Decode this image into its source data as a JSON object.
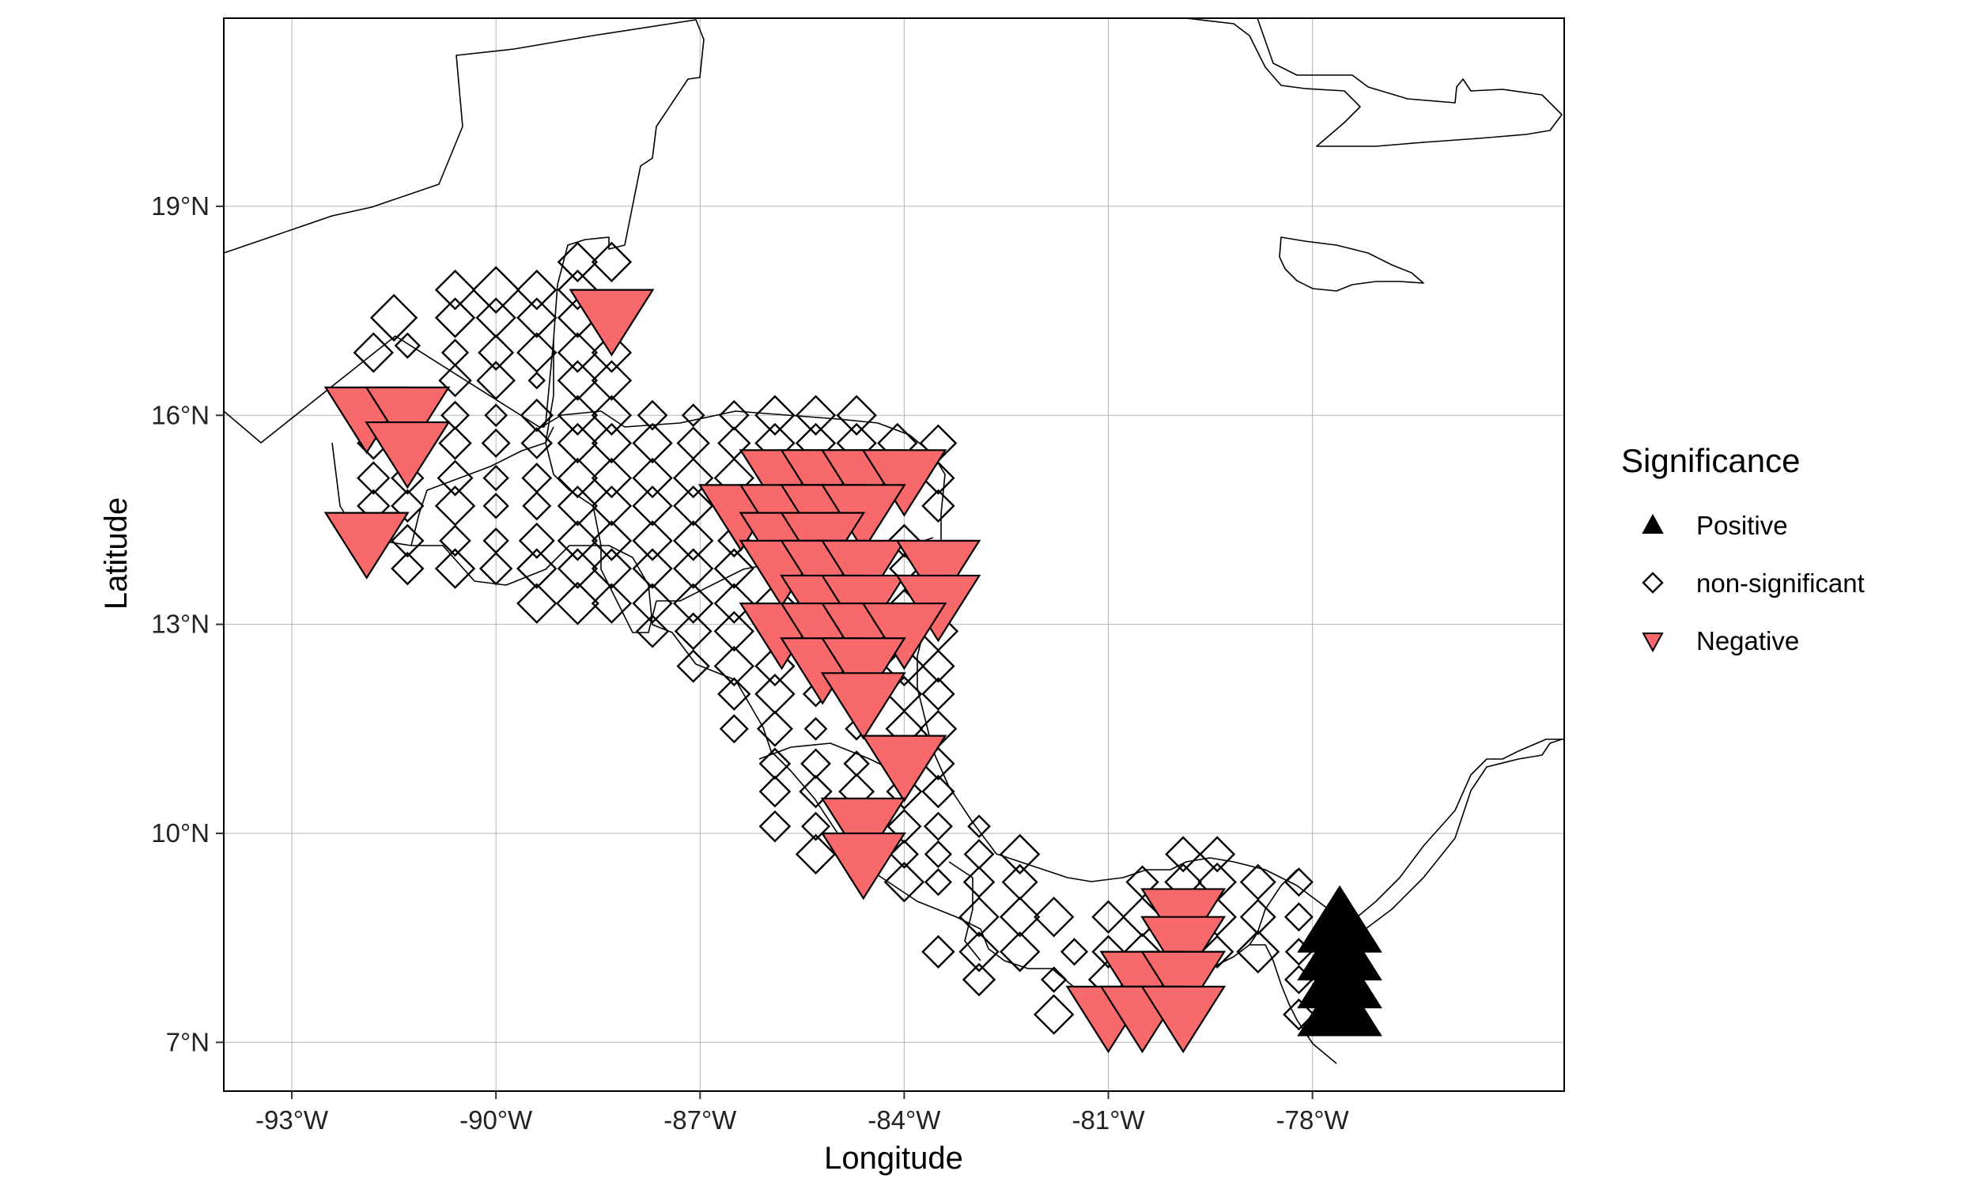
{
  "chart_data": {
    "type": "scatter",
    "xlabel": "Longitude",
    "ylabel": "Latitude",
    "xlim": [
      -94,
      -74.3
    ],
    "ylim": [
      6.3,
      21.7
    ],
    "x_ticks": [
      {
        "value": -93,
        "label": "-93°W"
      },
      {
        "value": -90,
        "label": "-90°W"
      },
      {
        "value": -87,
        "label": "-87°W"
      },
      {
        "value": -84,
        "label": "-84°W"
      },
      {
        "value": -81,
        "label": "-81°W"
      },
      {
        "value": -78,
        "label": "-78°W"
      }
    ],
    "y_ticks": [
      {
        "value": 7,
        "label": "7°N"
      },
      {
        "value": 10,
        "label": "10°N"
      },
      {
        "value": 13,
        "label": "13°N"
      },
      {
        "value": 16,
        "label": "16°N"
      },
      {
        "value": 19,
        "label": "19°N"
      }
    ],
    "grid": true,
    "legend": {
      "title": "Significance",
      "placement": "right",
      "entries": [
        {
          "label": "Positive",
          "symbol": "triangle-up",
          "color": "#000000"
        },
        {
          "label": "non-significant",
          "symbol": "diamond-open",
          "color": "#000000"
        },
        {
          "label": "Negative",
          "symbol": "triangle-down",
          "color": "#F8696B"
        }
      ]
    },
    "series": [
      {
        "name": "Positive",
        "symbol": "triangle-up",
        "color": "#000000",
        "points": [
          [
            -77.6,
            8.7,
            3
          ],
          [
            -77.6,
            8.3,
            3
          ],
          [
            -77.6,
            7.9,
            3
          ],
          [
            -77.6,
            7.5,
            3
          ]
        ]
      },
      {
        "name": "Negative",
        "symbol": "triangle-down",
        "color": "#F8696B",
        "points": [
          [
            -91.9,
            16.0,
            3
          ],
          [
            -91.3,
            16.0,
            3
          ],
          [
            -91.3,
            15.5,
            3
          ],
          [
            -91.9,
            14.2,
            3
          ],
          [
            -88.3,
            17.4,
            3
          ],
          [
            -86.4,
            14.6,
            3
          ],
          [
            -85.8,
            15.1,
            3
          ],
          [
            -85.2,
            15.1,
            3
          ],
          [
            -84.6,
            15.1,
            3
          ],
          [
            -84.0,
            15.1,
            3
          ],
          [
            -85.8,
            14.6,
            3
          ],
          [
            -85.2,
            14.6,
            3
          ],
          [
            -84.6,
            14.6,
            3
          ],
          [
            -85.8,
            14.2,
            3
          ],
          [
            -85.2,
            14.2,
            3
          ],
          [
            -85.8,
            13.8,
            3
          ],
          [
            -85.2,
            13.8,
            3
          ],
          [
            -84.6,
            13.8,
            3
          ],
          [
            -83.5,
            13.8,
            3
          ],
          [
            -85.2,
            13.3,
            3
          ],
          [
            -84.6,
            13.3,
            3
          ],
          [
            -83.5,
            13.3,
            3
          ],
          [
            -85.8,
            12.9,
            3
          ],
          [
            -85.2,
            12.9,
            3
          ],
          [
            -84.6,
            12.9,
            3
          ],
          [
            -84.0,
            12.9,
            3
          ],
          [
            -85.2,
            12.4,
            3
          ],
          [
            -84.6,
            12.4,
            3
          ],
          [
            -84.6,
            11.9,
            3
          ],
          [
            -84.0,
            11.0,
            3
          ],
          [
            -84.6,
            10.1,
            3
          ],
          [
            -84.6,
            9.6,
            3
          ],
          [
            -79.9,
            8.8,
            3
          ],
          [
            -79.9,
            8.4,
            3
          ],
          [
            -80.5,
            7.9,
            3
          ],
          [
            -79.9,
            7.9,
            3
          ],
          [
            -81.0,
            7.4,
            3
          ],
          [
            -80.5,
            7.4,
            3
          ],
          [
            -79.9,
            7.4,
            3
          ]
        ]
      },
      {
        "name": "non-significant",
        "symbol": "diamond-open",
        "color": "#000000",
        "points": [
          [
            -88.8,
            18.2,
            2
          ],
          [
            -88.3,
            18.2,
            2
          ],
          [
            -90.6,
            17.8,
            2
          ],
          [
            -90.0,
            17.8,
            2.5
          ],
          [
            -89.4,
            17.8,
            2
          ],
          [
            -88.8,
            17.8,
            2
          ],
          [
            -91.5,
            17.4,
            2.5
          ],
          [
            -90.6,
            17.4,
            2
          ],
          [
            -90.0,
            17.4,
            2
          ],
          [
            -89.4,
            17.4,
            2
          ],
          [
            -88.8,
            17.4,
            2
          ],
          [
            -91.8,
            16.9,
            2
          ],
          [
            -91.3,
            17.0,
            1
          ],
          [
            -90.6,
            16.9,
            1.1
          ],
          [
            -90.0,
            16.9,
            1.7
          ],
          [
            -89.4,
            16.9,
            2
          ],
          [
            -88.8,
            16.9,
            2
          ],
          [
            -88.3,
            16.9,
            2
          ],
          [
            -90.6,
            16.5,
            1.5
          ],
          [
            -90.0,
            16.5,
            1.9
          ],
          [
            -89.4,
            16.5,
            0.4
          ],
          [
            -88.8,
            16.5,
            2
          ],
          [
            -88.3,
            16.5,
            2
          ],
          [
            -91.8,
            16.0,
            1
          ],
          [
            -90.6,
            16.0,
            1.2
          ],
          [
            -90.0,
            16.0,
            0.8
          ],
          [
            -89.4,
            16.0,
            1.5
          ],
          [
            -88.8,
            16.0,
            2
          ],
          [
            -88.3,
            16.0,
            2
          ],
          [
            -87.7,
            16.0,
            1.3
          ],
          [
            -87.1,
            16.0,
            0.8
          ],
          [
            -86.5,
            16.0,
            1.3
          ],
          [
            -85.9,
            16.0,
            2
          ],
          [
            -85.3,
            16.0,
            2
          ],
          [
            -84.7,
            16.0,
            2
          ],
          [
            -91.8,
            15.6,
            1.5
          ],
          [
            -91.3,
            15.6,
            1.5
          ],
          [
            -90.6,
            15.6,
            1.5
          ],
          [
            -90.0,
            15.6,
            1.2
          ],
          [
            -89.4,
            15.6,
            1.4
          ],
          [
            -88.8,
            15.6,
            2
          ],
          [
            -88.3,
            15.6,
            2
          ],
          [
            -87.7,
            15.6,
            2
          ],
          [
            -87.1,
            15.6,
            1.5
          ],
          [
            -86.5,
            15.6,
            1.5
          ],
          [
            -85.9,
            15.6,
            2
          ],
          [
            -85.3,
            15.6,
            2
          ],
          [
            -84.7,
            15.6,
            2
          ],
          [
            -84.1,
            15.6,
            2
          ],
          [
            -83.5,
            15.6,
            1.8
          ],
          [
            -91.8,
            15.1,
            1.5
          ],
          [
            -91.3,
            15.1,
            1.5
          ],
          [
            -90.6,
            15.1,
            1.7
          ],
          [
            -90.0,
            15.1,
            1
          ],
          [
            -89.4,
            15.1,
            1.3
          ],
          [
            -88.8,
            15.1,
            2
          ],
          [
            -88.3,
            15.1,
            2
          ],
          [
            -87.7,
            15.1,
            2
          ],
          [
            -87.1,
            15.1,
            2
          ],
          [
            -86.5,
            15.1,
            2
          ],
          [
            -83.5,
            15.1,
            1.5
          ],
          [
            -91.8,
            14.7,
            1.5
          ],
          [
            -91.3,
            14.7,
            1.5
          ],
          [
            -90.6,
            14.7,
            2
          ],
          [
            -90.0,
            14.7,
            1
          ],
          [
            -89.4,
            14.7,
            1.2
          ],
          [
            -88.8,
            14.7,
            2
          ],
          [
            -88.3,
            14.7,
            2
          ],
          [
            -87.7,
            14.7,
            2
          ],
          [
            -87.1,
            14.7,
            2
          ],
          [
            -83.5,
            14.7,
            1.5
          ],
          [
            -91.3,
            14.2,
            1.5
          ],
          [
            -90.6,
            14.2,
            1.4
          ],
          [
            -90.0,
            14.2,
            1
          ],
          [
            -89.4,
            14.2,
            1.7
          ],
          [
            -88.8,
            14.2,
            2
          ],
          [
            -88.3,
            14.2,
            2
          ],
          [
            -87.7,
            14.2,
            2
          ],
          [
            -87.1,
            14.2,
            2
          ],
          [
            -86.5,
            14.2,
            1.5
          ],
          [
            -84.0,
            14.2,
            1.5
          ],
          [
            -91.3,
            13.8,
            1.5
          ],
          [
            -90.6,
            13.8,
            2
          ],
          [
            -90.0,
            13.8,
            1.5
          ],
          [
            -89.4,
            13.8,
            2
          ],
          [
            -88.8,
            13.8,
            2
          ],
          [
            -88.3,
            13.8,
            2
          ],
          [
            -87.7,
            13.8,
            2
          ],
          [
            -87.1,
            13.8,
            2
          ],
          [
            -86.5,
            13.8,
            2
          ],
          [
            -84.0,
            13.8,
            1.3
          ],
          [
            -89.4,
            13.3,
            2
          ],
          [
            -88.8,
            13.3,
            2.2
          ],
          [
            -88.3,
            13.3,
            2
          ],
          [
            -87.7,
            13.3,
            2
          ],
          [
            -87.1,
            13.3,
            2
          ],
          [
            -86.5,
            13.3,
            2
          ],
          [
            -85.9,
            13.3,
            2
          ],
          [
            -84.0,
            13.3,
            1.2
          ],
          [
            -87.7,
            12.9,
            1.5
          ],
          [
            -87.1,
            12.9,
            1.8
          ],
          [
            -86.5,
            12.9,
            2
          ],
          [
            -83.5,
            12.9,
            2
          ],
          [
            -87.1,
            12.4,
            1.5
          ],
          [
            -86.5,
            12.4,
            2
          ],
          [
            -85.9,
            12.4,
            2
          ],
          [
            -84.0,
            12.4,
            2
          ],
          [
            -83.5,
            12.4,
            1.5
          ],
          [
            -86.5,
            12.0,
            1.5
          ],
          [
            -85.9,
            12.0,
            2
          ],
          [
            -85.3,
            12.0,
            1
          ],
          [
            -84.0,
            12.0,
            1.7
          ],
          [
            -83.5,
            12.0,
            1.5
          ],
          [
            -86.5,
            11.5,
            1.2
          ],
          [
            -85.9,
            11.5,
            1.7
          ],
          [
            -85.3,
            11.5,
            0.8
          ],
          [
            -84.7,
            11.5,
            0.8
          ],
          [
            -84.0,
            11.5,
            1.8
          ],
          [
            -83.5,
            11.5,
            1.8
          ],
          [
            -85.9,
            11.0,
            1.4
          ],
          [
            -85.3,
            11.0,
            1.3
          ],
          [
            -84.7,
            11.0,
            1
          ],
          [
            -83.5,
            11.0,
            1.5
          ],
          [
            -85.9,
            10.6,
            1.4
          ],
          [
            -85.3,
            10.6,
            1.5
          ],
          [
            -84.7,
            10.6,
            1.7
          ],
          [
            -84.0,
            10.6,
            1.7
          ],
          [
            -83.5,
            10.6,
            1.5
          ],
          [
            -85.9,
            10.1,
            1.4
          ],
          [
            -85.3,
            10.1,
            1.2
          ],
          [
            -84.0,
            10.1,
            1.6
          ],
          [
            -83.5,
            10.1,
            1.2
          ],
          [
            -82.9,
            10.1,
            0.8
          ],
          [
            -85.3,
            9.7,
            2
          ],
          [
            -84.0,
            9.7,
            1.2
          ],
          [
            -83.5,
            9.7,
            1.1
          ],
          [
            -82.9,
            9.7,
            1.3
          ],
          [
            -82.3,
            9.7,
            2
          ],
          [
            -79.9,
            9.7,
            1.7
          ],
          [
            -79.4,
            9.7,
            1.7
          ],
          [
            -84.0,
            9.3,
            2
          ],
          [
            -83.5,
            9.3,
            1.1
          ],
          [
            -82.9,
            9.3,
            1.4
          ],
          [
            -82.3,
            9.3,
            1.7
          ],
          [
            -80.5,
            9.3,
            1.5
          ],
          [
            -79.9,
            9.3,
            1.8
          ],
          [
            -79.4,
            9.3,
            1.9
          ],
          [
            -78.8,
            9.3,
            1.7
          ],
          [
            -78.2,
            9.3,
            1.2
          ],
          [
            -82.9,
            8.8,
            2
          ],
          [
            -82.3,
            8.8,
            2
          ],
          [
            -81.8,
            8.8,
            2
          ],
          [
            -81.0,
            8.8,
            1.5
          ],
          [
            -80.5,
            8.8,
            2
          ],
          [
            -79.4,
            8.8,
            1.9
          ],
          [
            -78.8,
            8.8,
            1.7
          ],
          [
            -78.2,
            8.8,
            1.2
          ],
          [
            -83.5,
            8.3,
            1.5
          ],
          [
            -82.9,
            8.3,
            2
          ],
          [
            -82.3,
            8.3,
            2
          ],
          [
            -81.5,
            8.3,
            1.1
          ],
          [
            -81.0,
            8.3,
            1.5
          ],
          [
            -80.5,
            8.3,
            1.8
          ],
          [
            -79.4,
            8.3,
            1.5
          ],
          [
            -78.8,
            8.3,
            2.2
          ],
          [
            -78.2,
            8.3,
            1.1
          ],
          [
            -82.9,
            7.9,
            1.5
          ],
          [
            -81.8,
            7.9,
            1
          ],
          [
            -81.0,
            7.9,
            2
          ],
          [
            -78.2,
            7.9,
            1.2
          ],
          [
            -81.8,
            7.4,
            2
          ],
          [
            -78.2,
            7.4,
            1.4
          ]
        ]
      }
    ]
  }
}
